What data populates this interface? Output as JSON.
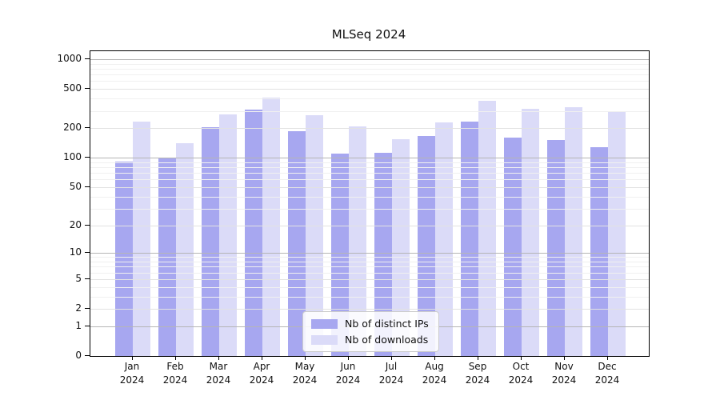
{
  "title": "MLSeq 2024",
  "colors": {
    "ips_bar": "#a7a7f0",
    "downloads_bar": "#dbdbf8",
    "grid_major": "#b5b5b5",
    "grid_mid": "#e2e2e2",
    "grid_minor": "#f0f0f0",
    "axis": "#000000",
    "text": "#111111",
    "legend_border": "#cccccc"
  },
  "chart_data": {
    "type": "bar",
    "title": "MLSeq 2024",
    "categories": [
      {
        "month": "Jan",
        "year": "2024"
      },
      {
        "month": "Feb",
        "year": "2024"
      },
      {
        "month": "Mar",
        "year": "2024"
      },
      {
        "month": "Apr",
        "year": "2024"
      },
      {
        "month": "May",
        "year": "2024"
      },
      {
        "month": "Jun",
        "year": "2024"
      },
      {
        "month": "Jul",
        "year": "2024"
      },
      {
        "month": "Aug",
        "year": "2024"
      },
      {
        "month": "Sep",
        "year": "2024"
      },
      {
        "month": "Oct",
        "year": "2024"
      },
      {
        "month": "Nov",
        "year": "2024"
      },
      {
        "month": "Dec",
        "year": "2024"
      }
    ],
    "series": [
      {
        "name": "Nb of distinct IPs",
        "color_key": "ips_bar",
        "values": [
          91,
          99,
          206,
          308,
          188,
          110,
          112,
          166,
          234,
          161,
          152,
          129
        ]
      },
      {
        "name": "Nb of downloads",
        "color_key": "downloads_bar",
        "values": [
          233,
          141,
          275,
          407,
          270,
          210,
          154,
          228,
          379,
          315,
          325,
          298
        ]
      }
    ],
    "y_scale": "log10(value+1)",
    "ylim": [
      0,
      1000
    ],
    "y_ticks": [
      0,
      1,
      2,
      5,
      10,
      20,
      50,
      100,
      200,
      500,
      1000
    ],
    "y_major_ticks": [
      1,
      10,
      100,
      1000
    ],
    "y_minor_ticks": [
      3,
      4,
      6,
      7,
      8,
      9,
      30,
      40,
      60,
      70,
      80,
      90,
      300,
      400,
      600,
      700,
      800,
      900
    ],
    "grid": true,
    "grid_above_bars": true,
    "legend_position": "bottom-center"
  },
  "legend": {
    "items": [
      {
        "label": "Nb of distinct IPs"
      },
      {
        "label": "Nb of downloads"
      }
    ]
  }
}
